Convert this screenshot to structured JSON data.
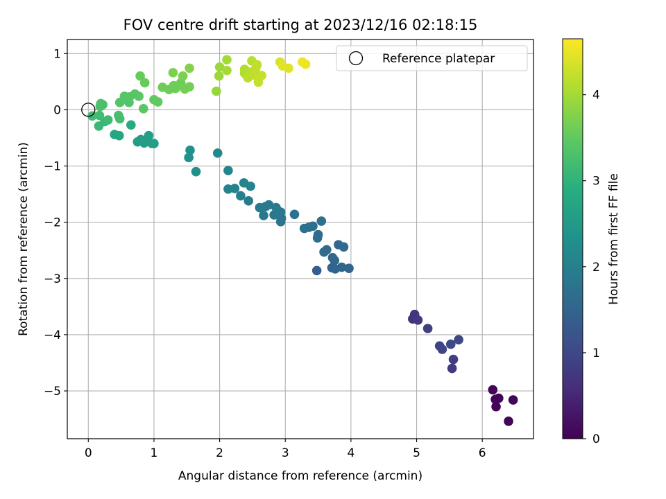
{
  "chart_data": {
    "type": "scatter",
    "title": "FOV centre drift starting at 2023/12/16 02:18:15",
    "xlabel": "Angular distance from reference (arcmin)",
    "ylabel": "Rotation from reference (arcmin)",
    "xlim": [
      -0.32,
      6.78
    ],
    "ylim": [
      -5.85,
      1.25
    ],
    "xticks": [
      0,
      1,
      2,
      3,
      4,
      5,
      6
    ],
    "yticks": [
      1,
      0,
      -1,
      -2,
      -3,
      -4,
      -5
    ],
    "xtick_labels": [
      "0",
      "1",
      "2",
      "3",
      "4",
      "5",
      "6"
    ],
    "ytick_labels": [
      "1",
      "0",
      "−1",
      "−2",
      "−3",
      "−4",
      "−5"
    ],
    "grid": true,
    "colormap": "viridis",
    "colorbar": {
      "label": "Hours from first FF file",
      "range": [
        0,
        4.65
      ],
      "ticks": [
        0,
        1,
        2,
        3,
        4
      ],
      "tick_labels": [
        "0",
        "1",
        "2",
        "3",
        "4"
      ]
    },
    "legend": {
      "placement": "top-right",
      "entries": [
        "Reference platepar"
      ]
    },
    "reference_point": {
      "x": 0,
      "y": 0
    },
    "series": [
      {
        "points": [
          {
            "x": 6.16,
            "y": -4.98,
            "t": 0.05
          },
          {
            "x": 6.2,
            "y": -5.15,
            "t": 0.05
          },
          {
            "x": 6.25,
            "y": -5.13,
            "t": 0.05
          },
          {
            "x": 6.21,
            "y": -5.28,
            "t": 0.05
          },
          {
            "x": 6.47,
            "y": -5.16,
            "t": 0.05
          },
          {
            "x": 6.4,
            "y": -5.54,
            "t": 0.05
          },
          {
            "x": 4.94,
            "y": -3.72,
            "t": 0.65
          },
          {
            "x": 4.97,
            "y": -3.64,
            "t": 0.7
          },
          {
            "x": 5.02,
            "y": -3.74,
            "t": 0.75
          },
          {
            "x": 5.17,
            "y": -3.89,
            "t": 0.85
          },
          {
            "x": 5.35,
            "y": -4.2,
            "t": 0.95
          },
          {
            "x": 5.39,
            "y": -4.26,
            "t": 0.95
          },
          {
            "x": 5.52,
            "y": -4.17,
            "t": 1.0
          },
          {
            "x": 5.64,
            "y": -4.09,
            "t": 1.0
          },
          {
            "x": 5.56,
            "y": -4.44,
            "t": 0.85
          },
          {
            "x": 5.54,
            "y": -4.6,
            "t": 0.8
          },
          {
            "x": 3.48,
            "y": -2.86,
            "t": 1.4
          },
          {
            "x": 3.71,
            "y": -2.81,
            "t": 1.5
          },
          {
            "x": 3.76,
            "y": -2.83,
            "t": 1.5
          },
          {
            "x": 3.86,
            "y": -2.8,
            "t": 1.5
          },
          {
            "x": 3.97,
            "y": -2.82,
            "t": 1.5
          },
          {
            "x": 3.75,
            "y": -2.68,
            "t": 1.55
          },
          {
            "x": 3.72,
            "y": -2.63,
            "t": 1.55
          },
          {
            "x": 3.59,
            "y": -2.53,
            "t": 1.6
          },
          {
            "x": 3.63,
            "y": -2.49,
            "t": 1.6
          },
          {
            "x": 3.81,
            "y": -2.4,
            "t": 1.6
          },
          {
            "x": 3.89,
            "y": -2.44,
            "t": 1.6
          },
          {
            "x": 3.49,
            "y": -2.28,
            "t": 1.65
          },
          {
            "x": 3.5,
            "y": -2.22,
            "t": 1.65
          },
          {
            "x": 3.29,
            "y": -2.11,
            "t": 1.7
          },
          {
            "x": 3.36,
            "y": -2.09,
            "t": 1.7
          },
          {
            "x": 3.42,
            "y": -2.07,
            "t": 1.7
          },
          {
            "x": 3.55,
            "y": -1.98,
            "t": 1.7
          },
          {
            "x": 3.14,
            "y": -1.86,
            "t": 1.75
          },
          {
            "x": 2.93,
            "y": -1.99,
            "t": 1.8
          },
          {
            "x": 2.94,
            "y": -1.93,
            "t": 1.8
          },
          {
            "x": 2.67,
            "y": -1.88,
            "t": 1.85
          },
          {
            "x": 2.83,
            "y": -1.87,
            "t": 1.85
          },
          {
            "x": 2.93,
            "y": -1.82,
            "t": 1.85
          },
          {
            "x": 2.61,
            "y": -1.74,
            "t": 1.9
          },
          {
            "x": 2.7,
            "y": -1.72,
            "t": 1.9
          },
          {
            "x": 2.75,
            "y": -1.69,
            "t": 1.9
          },
          {
            "x": 2.86,
            "y": -1.74,
            "t": 1.9
          },
          {
            "x": 2.44,
            "y": -1.62,
            "t": 1.95
          },
          {
            "x": 2.32,
            "y": -1.53,
            "t": 2.0
          },
          {
            "x": 2.13,
            "y": -1.41,
            "t": 2.05
          },
          {
            "x": 2.23,
            "y": -1.4,
            "t": 2.05
          },
          {
            "x": 2.37,
            "y": -1.3,
            "t": 2.05
          },
          {
            "x": 2.47,
            "y": -1.36,
            "t": 2.05
          },
          {
            "x": 2.13,
            "y": -1.08,
            "t": 2.1
          },
          {
            "x": 1.97,
            "y": -0.77,
            "t": 2.2
          },
          {
            "x": 1.64,
            "y": -1.1,
            "t": 2.3
          },
          {
            "x": 1.53,
            "y": -0.85,
            "t": 2.35
          },
          {
            "x": 1.55,
            "y": -0.72,
            "t": 2.35
          },
          {
            "x": 0.75,
            "y": -0.57,
            "t": 2.55
          },
          {
            "x": 0.8,
            "y": -0.53,
            "t": 2.55
          },
          {
            "x": 0.85,
            "y": -0.59,
            "t": 2.6
          },
          {
            "x": 0.89,
            "y": -0.56,
            "t": 2.6
          },
          {
            "x": 0.92,
            "y": -0.46,
            "t": 2.6
          },
          {
            "x": 0.97,
            "y": -0.6,
            "t": 2.6
          },
          {
            "x": 1.0,
            "y": -0.6,
            "t": 2.6
          },
          {
            "x": 0.4,
            "y": -0.44,
            "t": 2.75
          },
          {
            "x": 0.47,
            "y": -0.46,
            "t": 2.75
          },
          {
            "x": 0.65,
            "y": -0.27,
            "t": 2.85
          },
          {
            "x": 0.16,
            "y": -0.29,
            "t": 3.1
          },
          {
            "x": 0.25,
            "y": -0.21,
            "t": 3.1
          },
          {
            "x": 0.3,
            "y": -0.18,
            "t": 3.15
          },
          {
            "x": 0.06,
            "y": -0.11,
            "t": 3.2
          },
          {
            "x": 0.17,
            "y": -0.1,
            "t": 3.2
          },
          {
            "x": 0.48,
            "y": -0.16,
            "t": 3.25
          },
          {
            "x": 0.46,
            "y": -0.1,
            "t": 3.25
          },
          {
            "x": 0.18,
            "y": 0.06,
            "t": 3.3
          },
          {
            "x": 0.19,
            "y": 0.11,
            "t": 3.3
          },
          {
            "x": 0.22,
            "y": 0.09,
            "t": 3.3
          },
          {
            "x": 0.48,
            "y": 0.13,
            "t": 3.35
          },
          {
            "x": 0.62,
            "y": 0.13,
            "t": 3.35
          },
          {
            "x": 0.55,
            "y": 0.24,
            "t": 3.4
          },
          {
            "x": 0.63,
            "y": 0.23,
            "t": 3.4
          },
          {
            "x": 0.71,
            "y": 0.28,
            "t": 3.4
          },
          {
            "x": 0.77,
            "y": 0.24,
            "t": 3.45
          },
          {
            "x": 0.84,
            "y": 0.02,
            "t": 3.45
          },
          {
            "x": 1.0,
            "y": 0.18,
            "t": 3.5
          },
          {
            "x": 1.06,
            "y": 0.14,
            "t": 3.5
          },
          {
            "x": 0.79,
            "y": 0.6,
            "t": 3.55
          },
          {
            "x": 0.86,
            "y": 0.48,
            "t": 3.55
          },
          {
            "x": 1.13,
            "y": 0.4,
            "t": 3.6
          },
          {
            "x": 1.23,
            "y": 0.36,
            "t": 3.6
          },
          {
            "x": 1.3,
            "y": 0.43,
            "t": 3.6
          },
          {
            "x": 1.33,
            "y": 0.38,
            "t": 3.6
          },
          {
            "x": 1.41,
            "y": 0.48,
            "t": 3.6
          },
          {
            "x": 1.47,
            "y": 0.37,
            "t": 3.65
          },
          {
            "x": 1.54,
            "y": 0.41,
            "t": 3.65
          },
          {
            "x": 1.29,
            "y": 0.66,
            "t": 3.7
          },
          {
            "x": 1.44,
            "y": 0.6,
            "t": 3.7
          },
          {
            "x": 1.54,
            "y": 0.74,
            "t": 3.75
          },
          {
            "x": 1.95,
            "y": 0.33,
            "t": 3.9
          },
          {
            "x": 1.99,
            "y": 0.6,
            "t": 3.95
          },
          {
            "x": 2.0,
            "y": 0.76,
            "t": 3.95
          },
          {
            "x": 2.11,
            "y": 0.7,
            "t": 4.0
          },
          {
            "x": 2.11,
            "y": 0.89,
            "t": 4.0
          },
          {
            "x": 2.38,
            "y": 0.65,
            "t": 4.1
          },
          {
            "x": 2.38,
            "y": 0.72,
            "t": 4.1
          },
          {
            "x": 2.43,
            "y": 0.57,
            "t": 4.15
          },
          {
            "x": 2.47,
            "y": 0.67,
            "t": 4.15
          },
          {
            "x": 2.49,
            "y": 0.87,
            "t": 4.15
          },
          {
            "x": 2.52,
            "y": 0.62,
            "t": 4.2
          },
          {
            "x": 2.55,
            "y": 0.73,
            "t": 4.2
          },
          {
            "x": 2.57,
            "y": 0.8,
            "t": 4.2
          },
          {
            "x": 2.59,
            "y": 0.56,
            "t": 4.25
          },
          {
            "x": 2.59,
            "y": 0.49,
            "t": 4.25
          },
          {
            "x": 2.64,
            "y": 0.61,
            "t": 4.25
          },
          {
            "x": 2.92,
            "y": 0.85,
            "t": 4.4
          },
          {
            "x": 2.96,
            "y": 0.78,
            "t": 4.45
          },
          {
            "x": 3.05,
            "y": 0.74,
            "t": 4.45
          },
          {
            "x": 3.26,
            "y": 0.85,
            "t": 4.55
          },
          {
            "x": 3.31,
            "y": 0.81,
            "t": 4.55
          }
        ]
      }
    ]
  }
}
